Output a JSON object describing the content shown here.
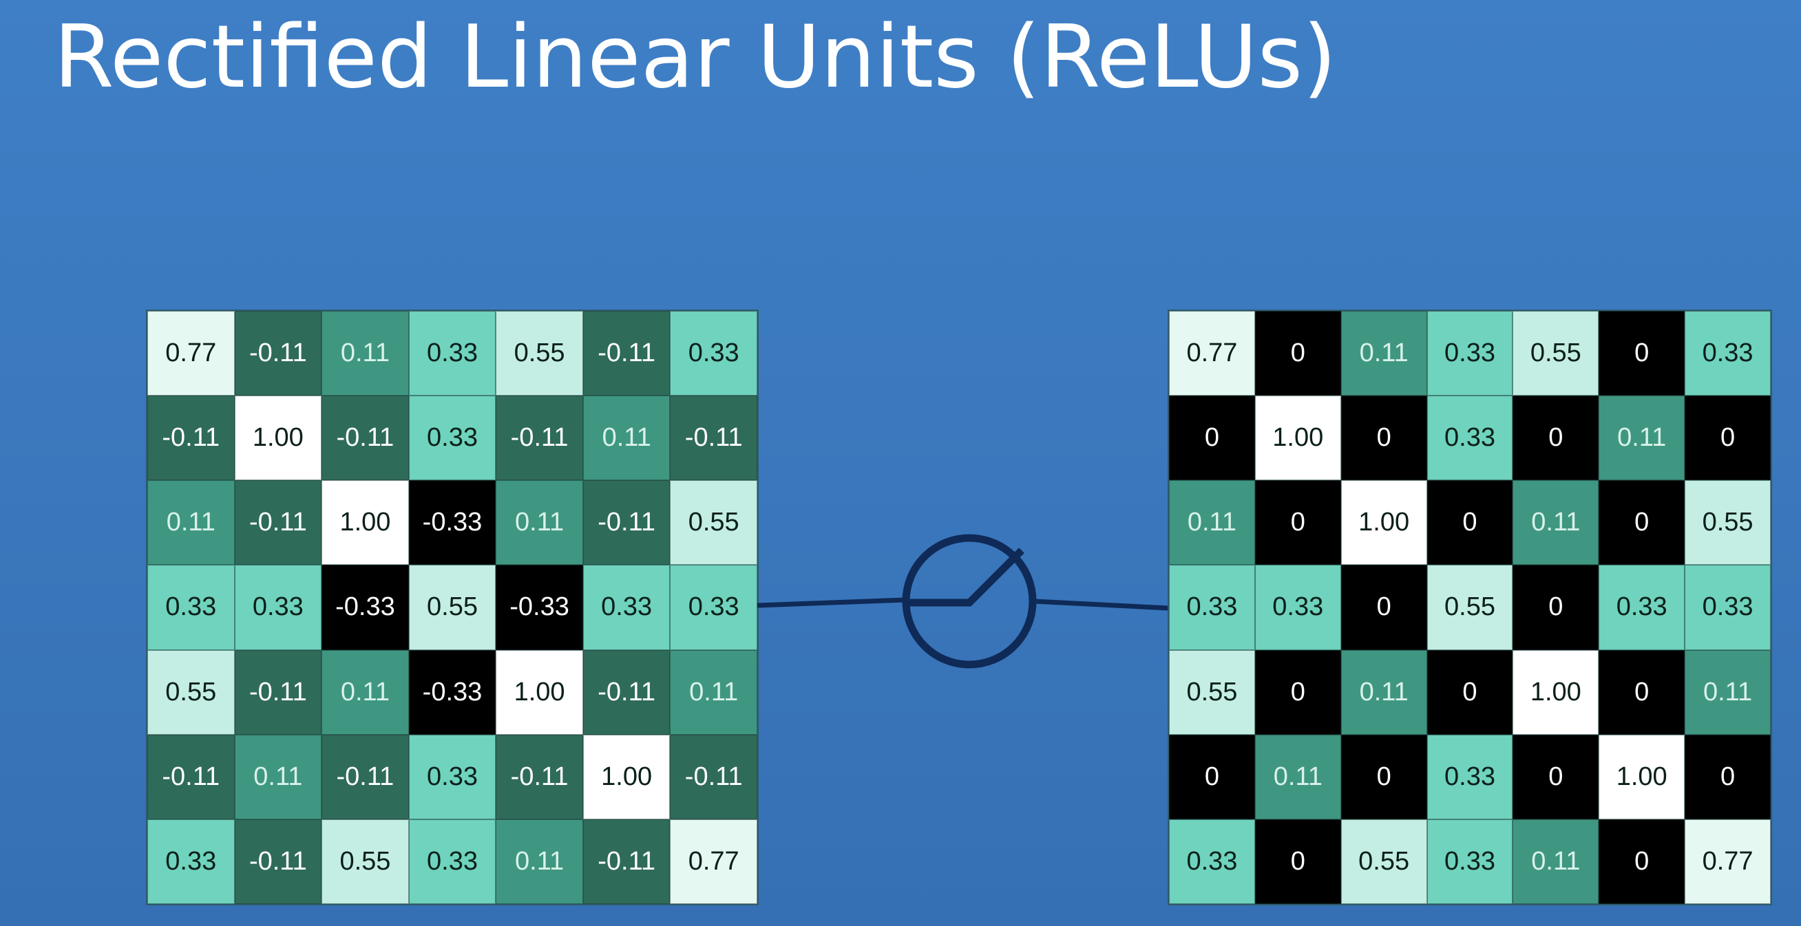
{
  "title": "Rectified Linear Units (ReLUs)",
  "icons": {
    "relu": "relu-activation-icon"
  },
  "input_matrix": [
    [
      "0.77",
      "-0.11",
      "0.11",
      "0.33",
      "0.55",
      "-0.11",
      "0.33"
    ],
    [
      "-0.11",
      "1.00",
      "-0.11",
      "0.33",
      "-0.11",
      "0.11",
      "-0.11"
    ],
    [
      "0.11",
      "-0.11",
      "1.00",
      "-0.33",
      "0.11",
      "-0.11",
      "0.55"
    ],
    [
      "0.33",
      "0.33",
      "-0.33",
      "0.55",
      "-0.33",
      "0.33",
      "0.33"
    ],
    [
      "0.55",
      "-0.11",
      "0.11",
      "-0.33",
      "1.00",
      "-0.11",
      "0.11"
    ],
    [
      "-0.11",
      "0.11",
      "-0.11",
      "0.33",
      "-0.11",
      "1.00",
      "-0.11"
    ],
    [
      "0.33",
      "-0.11",
      "0.55",
      "0.33",
      "0.11",
      "-0.11",
      "0.77"
    ]
  ],
  "output_matrix": [
    [
      "0.77",
      "0",
      "0.11",
      "0.33",
      "0.55",
      "0",
      "0.33"
    ],
    [
      "0",
      "1.00",
      "0",
      "0.33",
      "0",
      "0.11",
      "0"
    ],
    [
      "0.11",
      "0",
      "1.00",
      "0",
      "0.11",
      "0",
      "0.55"
    ],
    [
      "0.33",
      "0.33",
      "0",
      "0.55",
      "0",
      "0.33",
      "0.33"
    ],
    [
      "0.55",
      "0",
      "0.11",
      "0",
      "1.00",
      "0",
      "0.11"
    ],
    [
      "0",
      "0.11",
      "0",
      "0.33",
      "0",
      "1.00",
      "0"
    ],
    [
      "0.33",
      "0",
      "0.55",
      "0.33",
      "0.11",
      "0",
      "0.77"
    ]
  ],
  "colors": {
    "background": "#3b78bd",
    "connector": "#0f2a57",
    "v_neg_0_33": "#000000",
    "v_neg_0_11": "#2f6b59",
    "v_zero": "#000000",
    "v_0_11": "#3f9781",
    "v_0_33": "#6fd3bd",
    "v_0_55": "#c4eee3",
    "v_0_77": "#e6f8f2",
    "v_1_00": "#ffffff"
  }
}
